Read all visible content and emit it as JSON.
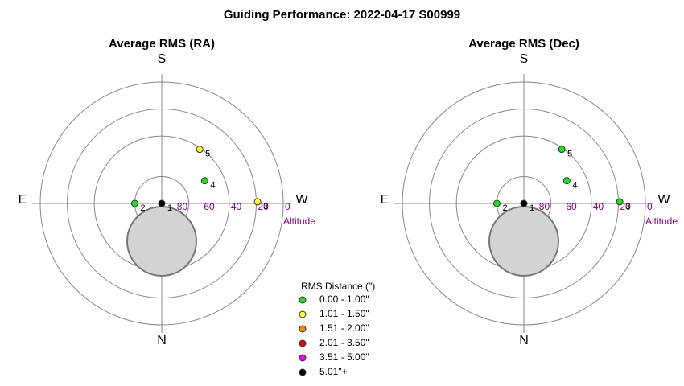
{
  "title": "Guiding Performance: 2022-04-17 S00999",
  "legend": {
    "title": "RMS Distance (\")",
    "items": [
      {
        "label": "0.00 - 1.00\"",
        "color": "#22dd22"
      },
      {
        "label": "1.01 - 1.50\"",
        "color": "#ffff33"
      },
      {
        "label": "1.51 - 2.00\"",
        "color": "#ee8800"
      },
      {
        "label": "2.01 - 3.50\"",
        "color": "#ee0000"
      },
      {
        "label": "3.51 - 5.00\"",
        "color": "#ee00ee"
      },
      {
        "label": "5.01\"+",
        "color": "#000000"
      }
    ]
  },
  "chart_data": [
    {
      "type": "polar",
      "title": "Average RMS (RA)",
      "directions": {
        "top": "S",
        "right": "W",
        "bottom": "N",
        "left": "E"
      },
      "rlim": [
        90,
        0
      ],
      "rticks": [
        80,
        60,
        40,
        20,
        0
      ],
      "rlabel": "Altitude",
      "rings": [
        70,
        40,
        20,
        0
      ],
      "points": [
        {
          "label": "1",
          "alt": 90,
          "az": 0,
          "color": "#000000"
        },
        {
          "label": "2",
          "alt": 70,
          "az": 90,
          "color": "#22dd22"
        },
        {
          "label": "3",
          "alt": 19,
          "az": 269,
          "color": "#ffff33"
        },
        {
          "label": "4",
          "alt": 54,
          "az": 242,
          "color": "#22dd22"
        },
        {
          "label": "5",
          "alt": 41,
          "az": 215,
          "color": "#ffff33"
        }
      ]
    },
    {
      "type": "polar",
      "title": "Average RMS (Dec)",
      "directions": {
        "top": "S",
        "right": "W",
        "bottom": "N",
        "left": "E"
      },
      "rlim": [
        90,
        0
      ],
      "rticks": [
        80,
        60,
        40,
        20,
        0
      ],
      "rlabel": "Altitude",
      "rings": [
        70,
        40,
        20,
        0
      ],
      "points": [
        {
          "label": "1",
          "alt": 90,
          "az": 0,
          "color": "#000000"
        },
        {
          "label": "2",
          "alt": 70,
          "az": 90,
          "color": "#22dd22"
        },
        {
          "label": "3",
          "alt": 19,
          "az": 269,
          "color": "#22dd22"
        },
        {
          "label": "4",
          "alt": 54,
          "az": 242,
          "color": "#22dd22"
        },
        {
          "label": "5",
          "alt": 41,
          "az": 215,
          "color": "#22dd22"
        }
      ]
    }
  ]
}
